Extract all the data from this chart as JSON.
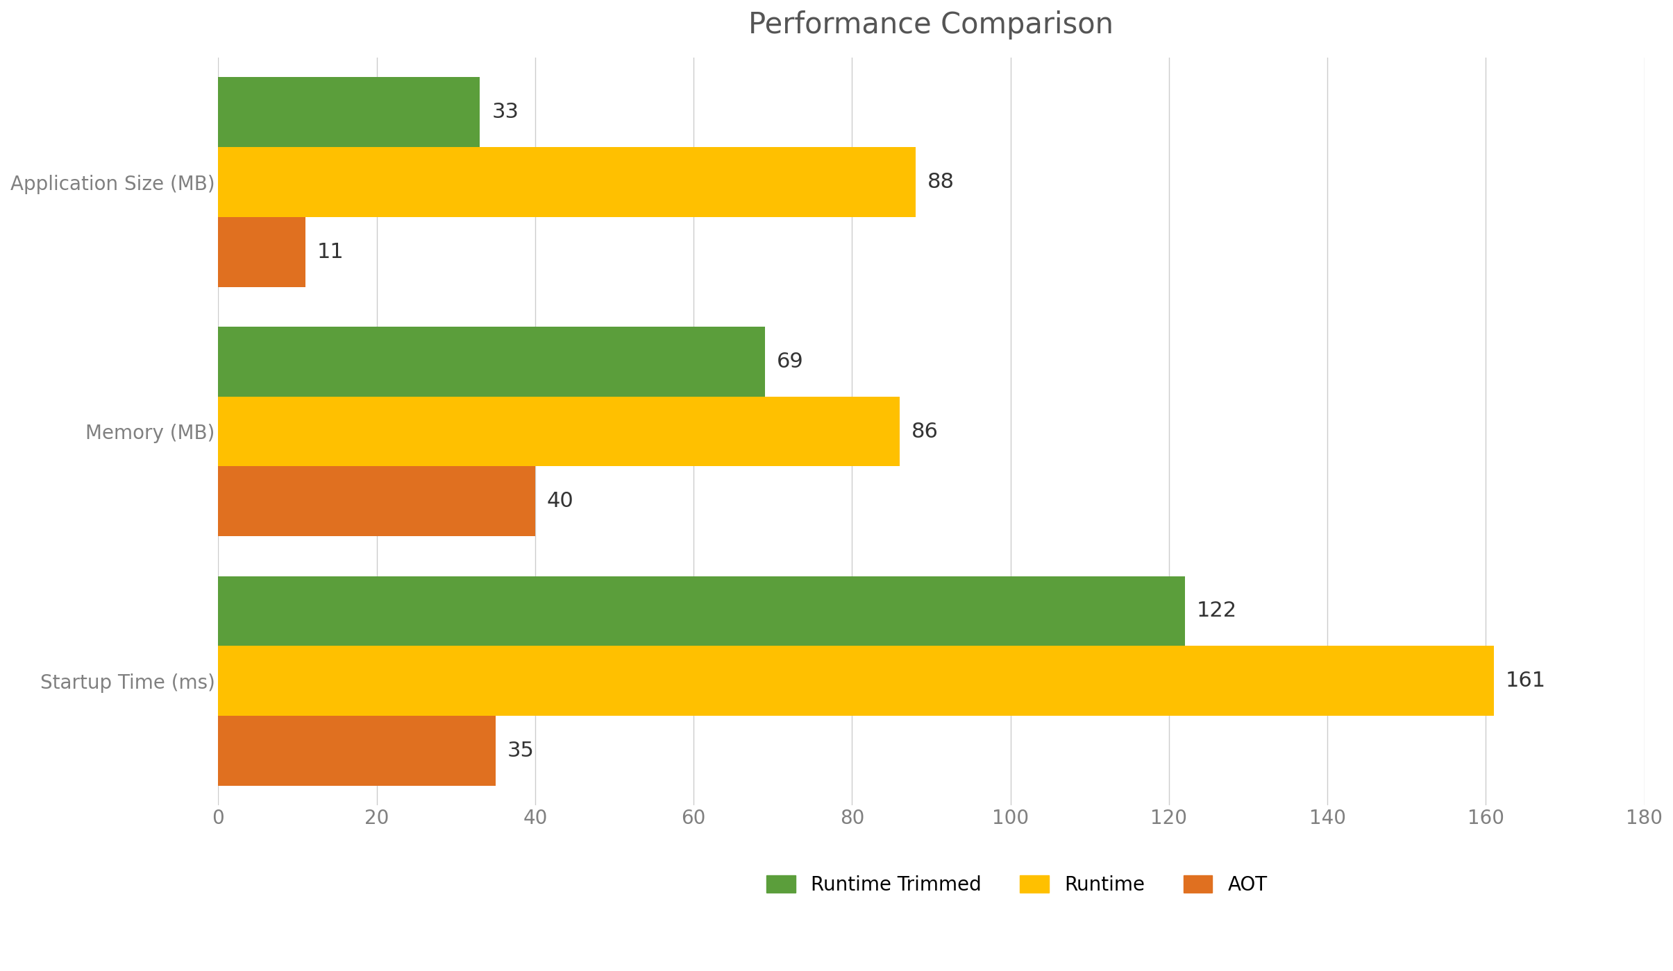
{
  "title": "Performance Comparison",
  "categories": [
    "Startup Time (ms)",
    "Memory (MB)",
    "Application Size (MB)"
  ],
  "series": [
    {
      "label": "Runtime Trimmed",
      "values": [
        122,
        69,
        33
      ],
      "color": "#5b9e3b"
    },
    {
      "label": "Runtime",
      "values": [
        161,
        86,
        88
      ],
      "color": "#ffc000"
    },
    {
      "label": "AOT",
      "values": [
        35,
        40,
        11
      ],
      "color": "#e07020"
    }
  ],
  "xlim": [
    0,
    180
  ],
  "xticks": [
    0,
    20,
    40,
    60,
    80,
    100,
    120,
    140,
    160,
    180
  ],
  "bar_height": 0.28,
  "title_fontsize": 30,
  "axis_label_fontsize": 20,
  "tick_fontsize": 20,
  "value_fontsize": 22,
  "legend_fontsize": 20,
  "background_color": "#ffffff",
  "grid_color": "#cccccc",
  "label_color": "#808080",
  "title_color": "#555555"
}
